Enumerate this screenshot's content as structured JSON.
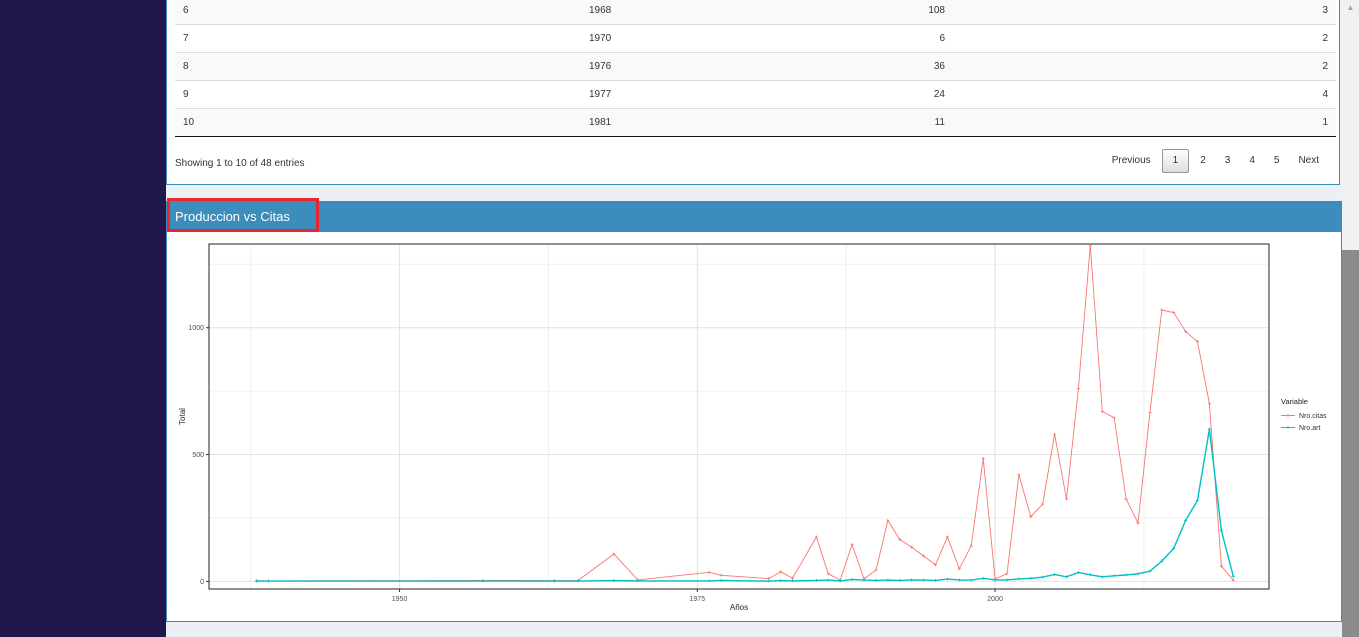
{
  "table": {
    "rows": [
      {
        "id": "6",
        "year": "1968",
        "citas": "108",
        "art": "3"
      },
      {
        "id": "7",
        "year": "1970",
        "citas": "6",
        "art": "2"
      },
      {
        "id": "8",
        "year": "1976",
        "citas": "36",
        "art": "2"
      },
      {
        "id": "9",
        "year": "1977",
        "citas": "24",
        "art": "4"
      },
      {
        "id": "10",
        "year": "1981",
        "citas": "11",
        "art": "1"
      }
    ],
    "info": "Showing 1 to 10 of 48 entries",
    "pagination": {
      "previous": "Previous",
      "pages": [
        "1",
        "2",
        "3",
        "4",
        "5"
      ],
      "next": "Next",
      "active": "1"
    }
  },
  "chart_box": {
    "title": "Produccion vs Citas"
  },
  "chart_data": {
    "type": "line",
    "xlabel": "Años",
    "ylabel": "Total",
    "xlim": [
      1934,
      2023
    ],
    "ylim": [
      -30,
      1330
    ],
    "xticks": [
      1950,
      1975,
      2000
    ],
    "yticks": [
      0,
      500,
      1000
    ],
    "legend_title": "Variable",
    "legend_position": "right",
    "grid": true,
    "series": [
      {
        "name": "Nro.citas",
        "color": "#F8766D",
        "x": [
          1938,
          1939,
          1957,
          1963,
          1965,
          1968,
          1970,
          1976,
          1977,
          1981,
          1982,
          1983,
          1985,
          1986,
          1987,
          1988,
          1989,
          1990,
          1991,
          1992,
          1993,
          1994,
          1995,
          1996,
          1997,
          1998,
          1999,
          2000,
          2001,
          2002,
          2003,
          2004,
          2005,
          2006,
          2007,
          2008,
          2009,
          2010,
          2011,
          2012,
          2013,
          2014,
          2015,
          2016,
          2017,
          2018,
          2019,
          2020
        ],
        "y": [
          3,
          2,
          4,
          3,
          4,
          108,
          6,
          36,
          24,
          11,
          38,
          13,
          175,
          30,
          5,
          145,
          10,
          45,
          240,
          165,
          135,
          100,
          65,
          175,
          50,
          140,
          485,
          10,
          30,
          420,
          255,
          305,
          580,
          325,
          760,
          1325,
          670,
          645,
          325,
          230,
          665,
          1070,
          1060,
          985,
          945,
          700,
          60,
          5
        ]
      },
      {
        "name": "Nro.art",
        "color": "#00BFC4",
        "x": [
          1938,
          1939,
          1957,
          1963,
          1965,
          1968,
          1970,
          1976,
          1977,
          1981,
          1982,
          1983,
          1985,
          1986,
          1987,
          1988,
          1989,
          1990,
          1991,
          1992,
          1993,
          1994,
          1995,
          1996,
          1997,
          1998,
          1999,
          2000,
          2001,
          2002,
          2003,
          2004,
          2005,
          2006,
          2007,
          2008,
          2009,
          2010,
          2011,
          2012,
          2013,
          2014,
          2015,
          2016,
          2017,
          2018,
          2019,
          2020
        ],
        "y": [
          1,
          1,
          1,
          1,
          1,
          3,
          2,
          2,
          4,
          1,
          3,
          2,
          4,
          5,
          2,
          8,
          5,
          4,
          5,
          4,
          6,
          5,
          4,
          9,
          6,
          5,
          12,
          6,
          6,
          10,
          12,
          17,
          27,
          18,
          35,
          26,
          18,
          22,
          25,
          30,
          40,
          80,
          130,
          240,
          320,
          600,
          200,
          20
        ]
      }
    ]
  }
}
